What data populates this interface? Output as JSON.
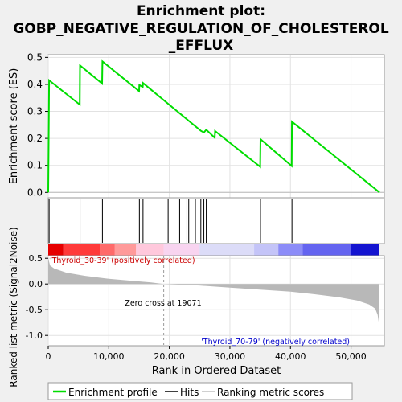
{
  "chart_data": {
    "type": "line",
    "title_line1": "Enrichment plot:",
    "title_line2": "GOBP_NEGATIVE_REGULATION_OF_CHOLESTEROL",
    "title_line3": "_EFFLUX",
    "top_panel": {
      "ylabel": "Enrichment score (ES)",
      "ylim": [
        -0.02,
        0.51
      ],
      "yticks": [
        0.0,
        0.1,
        0.2,
        0.3,
        0.4,
        0.5
      ],
      "ytick_labels": [
        "0.0",
        "0.1",
        "0.2",
        "0.3",
        "0.4",
        "0.5"
      ],
      "series_name": "Enrichment profile",
      "series_color": "#00dd00",
      "es_points": [
        [
          0,
          0.0
        ],
        [
          150,
          0.415
        ],
        [
          5200,
          0.325
        ],
        [
          5250,
          0.47
        ],
        [
          8900,
          0.403
        ],
        [
          8950,
          0.485
        ],
        [
          15000,
          0.375
        ],
        [
          15050,
          0.398
        ],
        [
          15600,
          0.39
        ],
        [
          15650,
          0.405
        ],
        [
          25200,
          0.228
        ],
        [
          25700,
          0.222
        ],
        [
          26100,
          0.232
        ],
        [
          27500,
          0.202
        ],
        [
          27550,
          0.227
        ],
        [
          35000,
          0.095
        ],
        [
          35050,
          0.197
        ],
        [
          40200,
          0.098
        ],
        [
          40250,
          0.262
        ],
        [
          54700,
          0.0
        ]
      ]
    },
    "hits": {
      "name": "Hits",
      "positions": [
        150,
        5250,
        8950,
        15050,
        15650,
        19800,
        21700,
        22900,
        23200,
        24300,
        25200,
        25700,
        26100,
        27550,
        35050,
        40250
      ]
    },
    "bottom_panel": {
      "ylabel": "Ranked list metric (Signal2Noise)",
      "xlabel": "Rank in Ordered Dataset",
      "ylim": [
        -1.2,
        0.55
      ],
      "yticks": [
        -1.0,
        -0.5,
        0.0,
        0.5
      ],
      "ytick_labels": [
        "-1.0",
        "-0.5",
        "0.0",
        "0.5"
      ],
      "series_name": "Ranking metric scores",
      "zero_cross": 19071,
      "zero_cross_label": "Zero cross at 19071",
      "positive_label": "'Thyroid_30-39' (positively correlated)",
      "negative_label": "'Thyroid_70-79' (negatively correlated)",
      "positive_color": "#cc0000",
      "negative_color": "#0000cc",
      "metric_profile": [
        [
          0,
          0.5
        ],
        [
          300,
          0.36
        ],
        [
          1000,
          0.3
        ],
        [
          3000,
          0.22
        ],
        [
          6000,
          0.16
        ],
        [
          10000,
          0.1
        ],
        [
          14000,
          0.06
        ],
        [
          17000,
          0.03
        ],
        [
          19071,
          0.0
        ],
        [
          25000,
          -0.03
        ],
        [
          30000,
          -0.07
        ],
        [
          35000,
          -0.11
        ],
        [
          40000,
          -0.15
        ],
        [
          44000,
          -0.2
        ],
        [
          48000,
          -0.26
        ],
        [
          51000,
          -0.32
        ],
        [
          53000,
          -0.4
        ],
        [
          54000,
          -0.48
        ],
        [
          54400,
          -0.6
        ],
        [
          54650,
          -0.8
        ],
        [
          54700,
          -1.15
        ]
      ]
    },
    "x_axis": {
      "xlim": [
        0,
        55500
      ],
      "xticks": [
        0,
        10000,
        20000,
        30000,
        40000,
        50000
      ],
      "xtick_labels": [
        "0",
        "10,000",
        "20,000",
        "30,000",
        "40,000",
        "50,000"
      ],
      "n_genes": 54700
    },
    "colorbar": {
      "segments": [
        {
          "from": 0,
          "to": 2500,
          "color": "#e60000"
        },
        {
          "from": 2500,
          "to": 8500,
          "color": "#ff3a3a"
        },
        {
          "from": 8500,
          "to": 11000,
          "color": "#ff6a6a"
        },
        {
          "from": 11000,
          "to": 14500,
          "color": "#ff9a9a"
        },
        {
          "from": 14500,
          "to": 19071,
          "color": "#ffc8dc"
        },
        {
          "from": 19071,
          "to": 25000,
          "color": "#f8d4f0"
        },
        {
          "from": 25000,
          "to": 34000,
          "color": "#dcdcf8"
        },
        {
          "from": 34000,
          "to": 38000,
          "color": "#c4c4f8"
        },
        {
          "from": 38000,
          "to": 42000,
          "color": "#8c8cf8"
        },
        {
          "from": 42000,
          "to": 50000,
          "color": "#6464f0"
        },
        {
          "from": 50000,
          "to": 54700,
          "color": "#1414d0"
        }
      ]
    },
    "legend": [
      {
        "label": "Enrichment profile",
        "color": "#00dd00"
      },
      {
        "label": "Hits",
        "color": "#000000"
      },
      {
        "label": "Ranking metric scores",
        "color": "#c0c0c0"
      }
    ]
  }
}
